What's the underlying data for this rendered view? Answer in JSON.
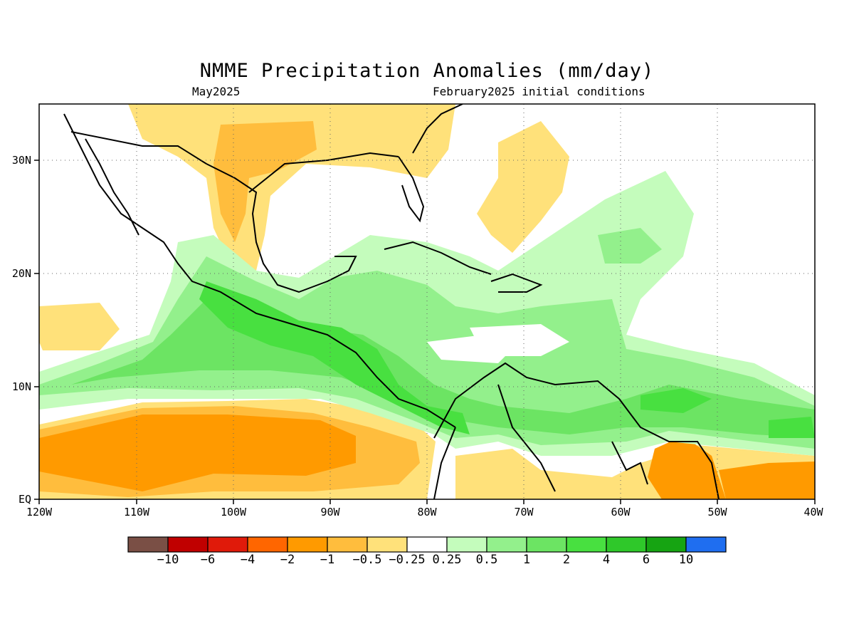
{
  "header": {
    "title": "NMME Precipitation Anomalies (mm/day)",
    "target_month": "May2025",
    "init_conditions": "February2025 initial conditions"
  },
  "map": {
    "lon_range": [
      -120,
      -40
    ],
    "lat_range": [
      0,
      35
    ],
    "gridlines": "dotted",
    "lat_ticks": [
      {
        "value": 30,
        "label": "30N"
      },
      {
        "value": 20,
        "label": "20N"
      },
      {
        "value": 10,
        "label": "10N"
      },
      {
        "value": 0,
        "label": "EQ"
      }
    ],
    "lon_ticks": [
      {
        "value": -120,
        "label": "120W"
      },
      {
        "value": -110,
        "label": "110W"
      },
      {
        "value": -100,
        "label": "100W"
      },
      {
        "value": -90,
        "label": "90W"
      },
      {
        "value": -80,
        "label": "80W"
      },
      {
        "value": -70,
        "label": "70W"
      },
      {
        "value": -60,
        "label": "60W"
      },
      {
        "value": -50,
        "label": "50W"
      },
      {
        "value": -40,
        "label": "40W"
      }
    ]
  },
  "colorbar": {
    "colors": [
      "#7a4f45",
      "#c00000",
      "#e01a0a",
      "#ff6600",
      "#ff9a00",
      "#ffbd3d",
      "#ffe17a",
      "#ffffff",
      "#c4fcbc",
      "#93f08c",
      "#6ce463",
      "#48e040",
      "#2fc82a",
      "#16a412",
      "#1f6ef0"
    ],
    "labels": [
      "−10",
      "−6",
      "−4",
      "−2",
      "−1",
      "−0.5",
      "−0.25",
      "0.25",
      "0.5",
      "1",
      "2",
      "4",
      "6",
      "10"
    ]
  }
}
